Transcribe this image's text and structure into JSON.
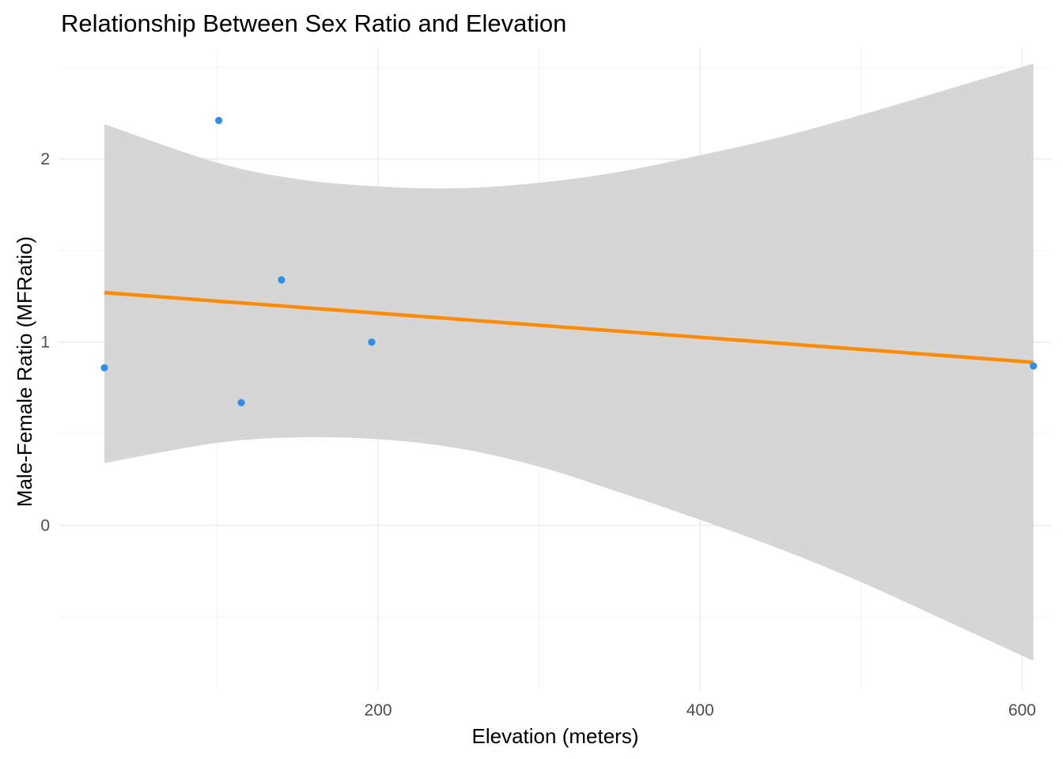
{
  "chart_data": {
    "type": "scatter",
    "title": "Relationship Between Sex Ratio and Elevation",
    "xlabel": "Elevation (meters)",
    "ylabel": "Male-Female Ratio (MFRatio)",
    "xlim": [
      2,
      618
    ],
    "ylim": [
      -0.9,
      2.6
    ],
    "x_ticks": [
      200,
      400,
      600
    ],
    "x_tick_labels": [
      "200",
      "400",
      "600"
    ],
    "x_minor_ticks": [
      100,
      300,
      500
    ],
    "y_ticks": [
      0,
      1,
      2
    ],
    "y_tick_labels": [
      "0",
      "1",
      "2"
    ],
    "y_minor_ticks": [
      -0.5,
      0.5,
      1.5,
      2.5
    ],
    "grid": true,
    "points": [
      {
        "x": 30,
        "y": 0.86
      },
      {
        "x": 101,
        "y": 2.21
      },
      {
        "x": 115,
        "y": 0.67
      },
      {
        "x": 140,
        "y": 1.34
      },
      {
        "x": 196,
        "y": 1.0
      },
      {
        "x": 607,
        "y": 0.87
      }
    ],
    "trend_line": {
      "x": [
        30,
        607
      ],
      "y": [
        1.27,
        0.89
      ],
      "color": "#ff8c00"
    },
    "confidence_band": {
      "x": [
        30,
        100,
        150,
        200,
        250,
        300,
        350,
        400,
        450,
        500,
        550,
        607
      ],
      "upper": [
        2.19,
        1.98,
        1.89,
        1.85,
        1.84,
        1.87,
        1.93,
        2.02,
        2.12,
        2.24,
        2.37,
        2.52
      ],
      "lower": [
        0.34,
        0.45,
        0.48,
        0.47,
        0.42,
        0.32,
        0.18,
        0.03,
        -0.13,
        -0.31,
        -0.51,
        -0.74
      ],
      "color": "#d6d6d6"
    },
    "point_color": "#2f8ee5"
  }
}
